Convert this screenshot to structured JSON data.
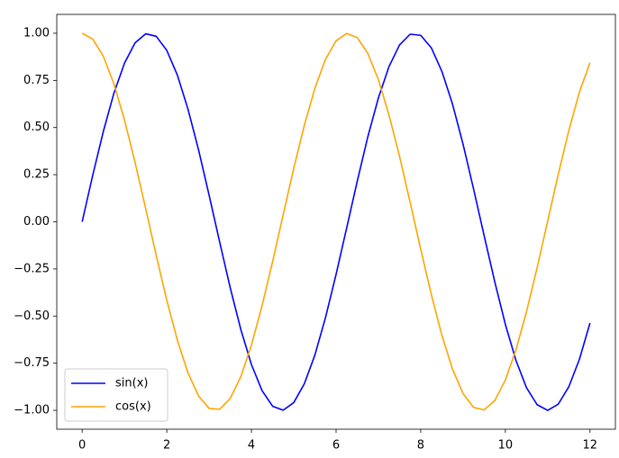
{
  "chart_data": {
    "type": "line",
    "x": [
      0,
      0.25,
      0.5,
      0.75,
      1,
      1.25,
      1.5,
      1.75,
      2,
      2.25,
      2.5,
      2.75,
      3,
      3.25,
      3.5,
      3.75,
      4,
      4.25,
      4.5,
      4.75,
      5,
      5.25,
      5.5,
      5.75,
      6,
      6.25,
      6.5,
      6.75,
      7,
      7.25,
      7.5,
      7.75,
      8,
      8.25,
      8.5,
      8.75,
      9,
      9.25,
      9.5,
      9.75,
      10,
      10.25,
      10.5,
      10.75,
      11,
      11.25,
      11.5,
      11.75,
      12
    ],
    "series": [
      {
        "name": "sin(x)",
        "color": "#0000ff",
        "values": [
          0,
          0.247,
          0.479,
          0.682,
          0.841,
          0.949,
          0.997,
          0.984,
          0.909,
          0.778,
          0.598,
          0.382,
          0.141,
          -0.108,
          -0.351,
          -0.572,
          -0.757,
          -0.895,
          -0.978,
          -0.999,
          -0.959,
          -0.859,
          -0.706,
          -0.508,
          -0.279,
          -0.033,
          0.215,
          0.451,
          0.657,
          0.823,
          0.938,
          0.995,
          0.989,
          0.923,
          0.798,
          0.625,
          0.412,
          0.173,
          -0.075,
          -0.319,
          -0.544,
          -0.735,
          -0.88,
          -0.97,
          -1.0,
          -0.967,
          -0.875,
          -0.729,
          -0.537
        ]
      },
      {
        "name": "cos(x)",
        "color": "#ffa500",
        "values": [
          1,
          0.969,
          0.878,
          0.732,
          0.54,
          0.315,
          0.071,
          -0.178,
          -0.416,
          -0.628,
          -0.801,
          -0.924,
          -0.99,
          -0.994,
          -0.936,
          -0.821,
          -0.654,
          -0.446,
          -0.211,
          0.038,
          0.284,
          0.512,
          0.709,
          0.862,
          0.96,
          0.999,
          0.977,
          0.893,
          0.754,
          0.567,
          0.347,
          0.103,
          -0.146,
          -0.385,
          -0.602,
          -0.781,
          -0.911,
          -0.985,
          -0.997,
          -0.948,
          -0.839,
          -0.679,
          -0.476,
          -0.244,
          0.004,
          0.252,
          0.484,
          0.688,
          0.844
        ]
      }
    ],
    "xlim": [
      -0.6,
      12.6
    ],
    "ylim": [
      -1.1,
      1.1
    ],
    "xticks": [
      0,
      2,
      4,
      6,
      8,
      10,
      12
    ],
    "yticks": [
      {
        "value": 1,
        "label": "1.00"
      },
      {
        "value": 0.75,
        "label": "0.75"
      },
      {
        "value": 0.5,
        "label": "0.50"
      },
      {
        "value": 0.25,
        "label": "0.25"
      },
      {
        "value": 0,
        "label": "0.00"
      },
      {
        "value": -0.25,
        "label": "−0.25"
      },
      {
        "value": -0.5,
        "label": "−0.50"
      },
      {
        "value": -0.75,
        "label": "−0.75"
      },
      {
        "value": -1,
        "label": "−1.00"
      }
    ],
    "legend": "lower left",
    "grid": false
  }
}
